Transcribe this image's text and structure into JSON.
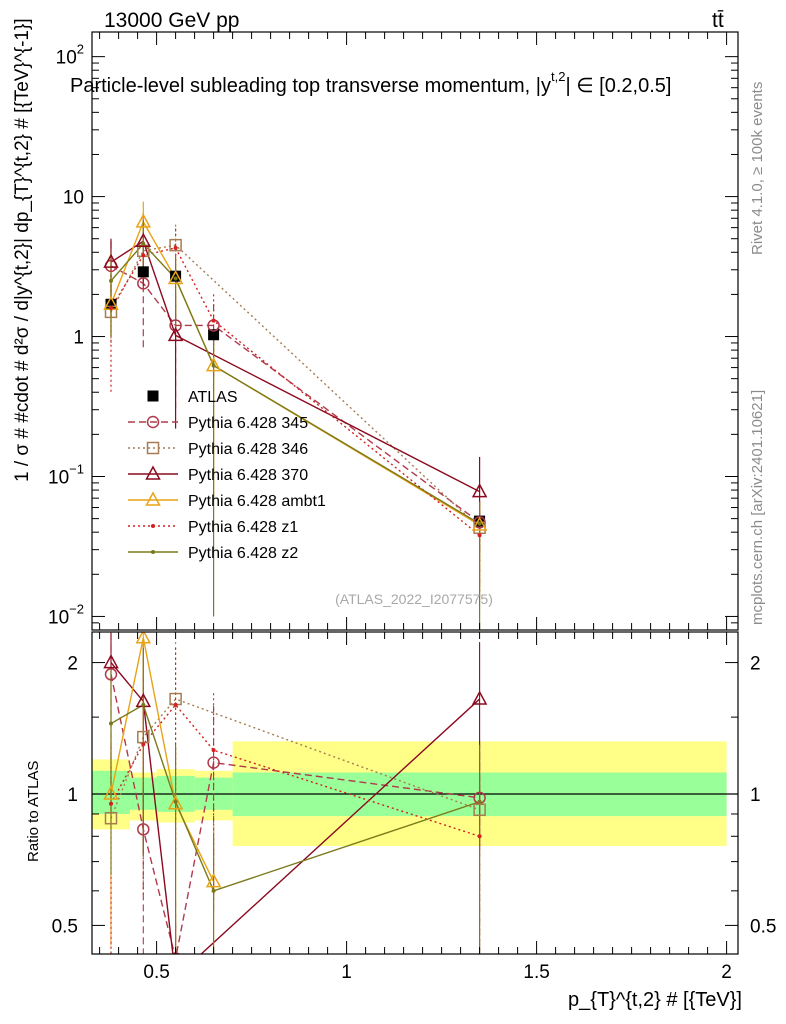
{
  "header": {
    "energy_label": "13000 GeV pp",
    "process_label": "tt̄",
    "title": "Particle-level subleading top transverse momentum, |y^{t,2}| ∈ [0.2,0.5]",
    "title_main": "Particle-level subleading top transverse momentum, |y",
    "title_sup": "t,2",
    "title_tail": "| ∈ [0.2,0.5]",
    "analysis_id": "(ATLAS_2022_I2077575)",
    "side_rivet": "Rivet 4.1.0, ≥ 100k events",
    "side_source": "mcplots.cern.ch [arXiv:2401.10621]"
  },
  "axis_labels": {
    "main_y": "1 / σ # #cdot # d²σ / d|y^{t,2}| dp_{T}^{t,2} # [{TeV}^{-1}]",
    "ratio_y": "Ratio to ATLAS",
    "x": "p_{T}^{t,2} # [{TeV}]"
  },
  "chart_data": [
    {
      "type": "line",
      "panel": "main",
      "title": "Particle-level subleading top transverse momentum, |y^{t,2}| ∈ [0.2,0.5]",
      "xlabel": "p_{T}^{t,2} # [{TeV}]",
      "ylabel": "1 / σ # #cdot # d²σ / d|y^{t,2}| dp_{T}^{t,2} # [{TeV}^{-1}]",
      "xscale": "linear",
      "yscale": "log",
      "xlim": [
        0.33,
        2.03
      ],
      "ylim": [
        0.008,
        150
      ],
      "xticks": [
        0.5,
        1,
        1.5,
        2
      ],
      "xtick_labels": [
        "0.5",
        "1",
        "1.5",
        "2"
      ],
      "yticks": [
        0.01,
        0.1,
        1,
        10,
        100
      ],
      "ytick_labels": [
        {
          "base": "10",
          "exp": "−2"
        },
        {
          "base": "10",
          "exp": "−1"
        },
        {
          "base": "1",
          "exp": ""
        },
        {
          "base": "10",
          "exp": ""
        },
        {
          "base": "10",
          "exp": "2"
        }
      ],
      "legend_position": "center-left",
      "series": [
        {
          "name": "ATLAS",
          "color": "#000000",
          "marker": "filled-square",
          "line": "none",
          "x": [
            0.38,
            0.465,
            0.55,
            0.65,
            1.35
          ],
          "y": [
            1.7,
            2.9,
            2.7,
            1.03,
            0.048
          ],
          "yerr": [
            [
              0.2,
              0.3,
              0.3,
              0.1,
              0.008
            ],
            [
              0.2,
              0.3,
              0.3,
              0.1,
              0.008
            ]
          ]
        },
        {
          "name": "Pythia 6.428 345",
          "color": "#b03a4c",
          "marker": "open-circle",
          "line": "dashed",
          "x": [
            0.38,
            0.465,
            0.55,
            0.65,
            1.35
          ],
          "y": [
            3.2,
            2.4,
            1.2,
            1.2,
            0.047
          ],
          "yerr": [
            [
              1.3,
              1.6,
              0.9,
              0.7,
              0.03
            ],
            [
              1.6,
              1.6,
              0.9,
              0.5,
              0.02
            ]
          ]
        },
        {
          "name": "Pythia 6.428 346",
          "color": "#a67c52",
          "marker": "open-square",
          "line": "dotted",
          "x": [
            0.38,
            0.465,
            0.55,
            0.65,
            1.35
          ],
          "y": [
            1.5,
            4.1,
            4.5,
            null,
            0.043
          ],
          "yerr": [
            [
              0.6,
              1.6,
              2.0,
              0,
              0.02
            ],
            [
              0.6,
              2.0,
              1.8,
              0,
              0.02
            ]
          ]
        },
        {
          "name": "Pythia 6.428 370",
          "color": "#8b0a1f",
          "marker": "open-triangle",
          "line": "solid",
          "x": [
            0.38,
            0.465,
            0.55,
            1.35
          ],
          "y": [
            3.4,
            4.8,
            1.02,
            0.078
          ],
          "yerr": [
            [
              2.0,
              2.5,
              0.8,
              0.05
            ],
            [
              1.6,
              2.8,
              0.9,
              0.06
            ]
          ]
        },
        {
          "name": "Pythia 6.428 ambt1",
          "color": "#e8a317",
          "marker": "open-triangle",
          "line": "solid",
          "x": [
            0.38,
            0.465,
            0.55,
            0.65,
            1.35
          ],
          "y": [
            1.7,
            6.6,
            2.6,
            0.62,
            0.045
          ],
          "yerr": [
            [
              0.7,
              2.2,
              1.2,
              0.55,
              0.03
            ],
            [
              0.7,
              2.6,
              1.0,
              0.4,
              0.02
            ]
          ]
        },
        {
          "name": "Pythia 6.428 z1",
          "color": "#d42020",
          "marker": "dot",
          "line": "dotted",
          "x": [
            0.38,
            0.465,
            0.55,
            0.65,
            1.35
          ],
          "y": [
            1.6,
            3.8,
            4.3,
            1.3,
            0.038
          ],
          "yerr": [
            [
              1.2,
              1.6,
              1.8,
              0.8,
              0.025
            ],
            [
              1.4,
              1.8,
              1.6,
              0.7,
              0.02
            ]
          ]
        },
        {
          "name": "Pythia 6.428 z2",
          "color": "#7a7a1a",
          "marker": "dot",
          "line": "solid",
          "x": [
            0.38,
            0.465,
            0.55,
            0.65,
            1.35
          ],
          "y": [
            2.5,
            4.6,
            2.6,
            0.62,
            0.046
          ],
          "yerr": [
            [
              1.5,
              1.8,
              1.5,
              0.61,
              0.04
            ],
            [
              1.5,
              2.2,
              1.3,
              0.5,
              0.02
            ]
          ]
        }
      ]
    },
    {
      "type": "line",
      "panel": "ratio",
      "xlabel": "p_{T}^{t,2} # [{TeV}]",
      "ylabel": "Ratio to ATLAS",
      "xscale": "linear",
      "yscale": "log",
      "xlim": [
        0.33,
        2.03
      ],
      "ylim": [
        0.43,
        2.35
      ],
      "reference_line": 1,
      "yticks": [
        0.5,
        1,
        2
      ],
      "ytick_labels": [
        "0.5",
        "1",
        "2"
      ],
      "bands": {
        "bin_edges": [
          0.33,
          0.43,
          0.5,
          0.6,
          0.7,
          2.0
        ],
        "inner_green": [
          [
            0.9,
            1.13
          ],
          [
            0.92,
            1.09
          ],
          [
            0.91,
            1.1
          ],
          [
            0.92,
            1.09
          ],
          [
            0.89,
            1.12
          ]
        ],
        "outer_yellow": [
          [
            0.83,
            1.2
          ],
          [
            0.87,
            1.12
          ],
          [
            0.86,
            1.14
          ],
          [
            0.87,
            1.13
          ],
          [
            0.76,
            1.32
          ]
        ],
        "inner_color": "#99ff99",
        "outer_color": "#ffff88"
      },
      "series": [
        {
          "name": "Pythia 6.428 345",
          "color": "#b03a4c",
          "marker": "open-circle",
          "line": "dashed",
          "x": [
            0.38,
            0.465,
            0.55,
            0.65,
            1.35
          ],
          "y": [
            1.88,
            0.83,
            0.42,
            1.18,
            0.98
          ]
        },
        {
          "name": "Pythia 6.428 346",
          "color": "#a67c52",
          "marker": "open-square",
          "line": "dotted",
          "x": [
            0.38,
            0.465,
            0.55,
            1.35
          ],
          "y": [
            0.88,
            1.35,
            1.65,
            0.92
          ]
        },
        {
          "name": "Pythia 6.428 370",
          "color": "#8b0a1f",
          "marker": "open-triangle",
          "line": "solid",
          "x": [
            0.38,
            0.465,
            0.55,
            1.35
          ],
          "y": [
            2.0,
            1.63,
            0.38,
            1.65
          ]
        },
        {
          "name": "Pythia 6.428 ambt1",
          "color": "#e8a317",
          "marker": "open-triangle",
          "line": "solid",
          "x": [
            0.38,
            0.465,
            0.55,
            0.65
          ],
          "y": [
            1.0,
            2.28,
            0.95,
            0.63
          ]
        },
        {
          "name": "Pythia 6.428 z1",
          "color": "#d42020",
          "marker": "dot",
          "line": "dotted",
          "x": [
            0.38,
            0.465,
            0.55,
            0.65,
            1.35
          ],
          "y": [
            0.95,
            1.3,
            1.6,
            1.26,
            0.8
          ]
        },
        {
          "name": "Pythia 6.428 z2",
          "color": "#7a7a1a",
          "marker": "dot",
          "line": "solid",
          "x": [
            0.38,
            0.465,
            0.55,
            0.65,
            1.35
          ],
          "y": [
            1.45,
            1.6,
            0.96,
            0.6,
            0.96
          ]
        }
      ]
    }
  ]
}
